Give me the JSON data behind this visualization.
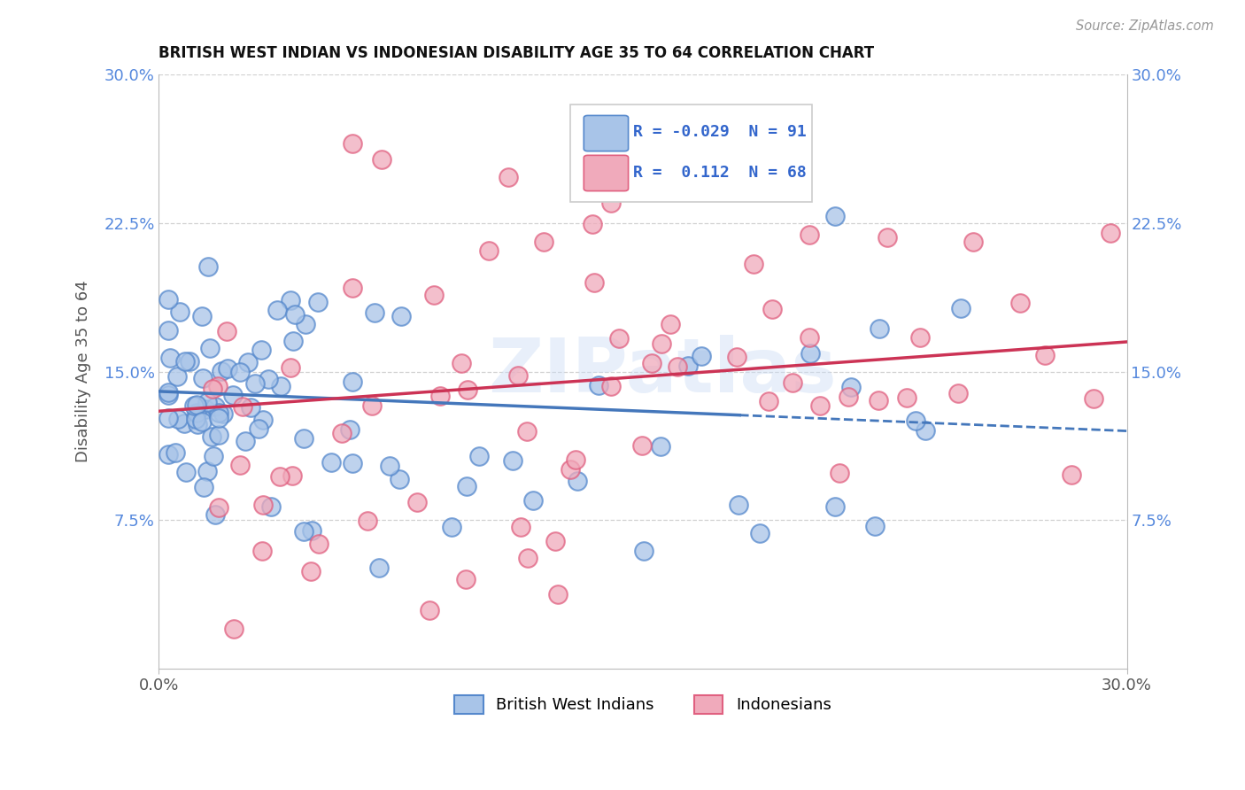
{
  "title": "BRITISH WEST INDIAN VS INDONESIAN DISABILITY AGE 35 TO 64 CORRELATION CHART",
  "source": "Source: ZipAtlas.com",
  "ylabel": "Disability Age 35 to 64",
  "xlim": [
    0.0,
    0.3
  ],
  "ylim": [
    0.0,
    0.3
  ],
  "yticks": [
    0.075,
    0.15,
    0.225,
    0.3
  ],
  "ytick_labels": [
    "7.5%",
    "15.0%",
    "22.5%",
    "30.0%"
  ],
  "blue_fill": "#a8c4e8",
  "blue_edge": "#5588cc",
  "pink_fill": "#f0aabb",
  "pink_edge": "#e06080",
  "blue_line_color": "#4477bb",
  "pink_line_color": "#cc3355",
  "legend_R1": "-0.029",
  "legend_N1": "91",
  "legend_R2": "0.112",
  "legend_N2": "68",
  "legend_label1": "British West Indians",
  "legend_label2": "Indonesians",
  "watermark": "ZIPatlas",
  "tick_color": "#5588dd",
  "grid_color": "#cccccc"
}
